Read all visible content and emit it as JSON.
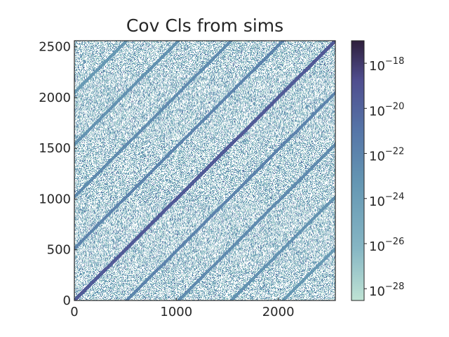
{
  "chart_data": {
    "type": "heatmap",
    "title": "Cov Cls from sims",
    "xlabel": "",
    "ylabel": "",
    "xlim": [
      0,
      2560
    ],
    "ylim": [
      0,
      2560
    ],
    "x_ticks": [
      0,
      1000,
      2000
    ],
    "y_ticks": [
      0,
      500,
      1000,
      1500,
      2000,
      2500
    ],
    "x_tick_labels": [
      "0",
      "1000",
      "2000"
    ],
    "y_tick_labels": [
      "0",
      "500",
      "1000",
      "1500",
      "2000",
      "2500"
    ],
    "grid": false,
    "colorbar": {
      "scale": "log",
      "min": 3e-29,
      "max": 1e-17,
      "ticks": [
        1e-28,
        1e-26,
        1e-24,
        1e-22,
        1e-20,
        1e-18
      ],
      "tick_bases": [
        "10",
        "10",
        "10",
        "10",
        "10",
        "10"
      ],
      "tick_exponents": [
        "−28",
        "−26",
        "−24",
        "−22",
        "−20",
        "−18"
      ],
      "colors": [
        "#bfe3d4",
        "#86b6c4",
        "#6597b3",
        "#5676a8",
        "#4f4d8e",
        "#2e1e3b"
      ]
    },
    "matrix_structure": {
      "description_of_values": "symmetric covariance matrix, sparse speckle background with bright diagonal bands",
      "diagonal_offsets": [
        0,
        512,
        1024,
        1536,
        2048
      ],
      "diagonal_band_values": [
        3e-20,
        1e-22,
        3e-23,
        1e-23,
        3e-24
      ],
      "background_value_range": [
        1e-28,
        1e-21
      ],
      "background_fill_fraction": 0.55
    }
  }
}
